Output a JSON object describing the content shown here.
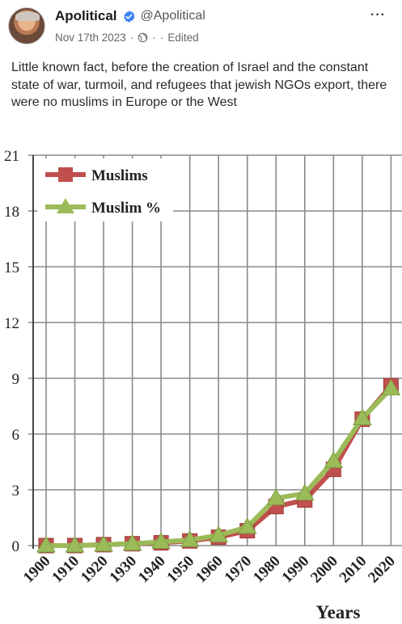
{
  "post": {
    "display_name": "Apolitical",
    "handle": "@Apolitical",
    "date": "Nov 17th 2023",
    "meta_sep1": "·",
    "meta_sep2": "·",
    "meta_sep3": "·",
    "edited": "Edited",
    "more": "···",
    "text": "Little known fact, before the creation of Israel and the constant state of war, turmoil, and refugees that jewish NGOs export, there were no muslims in Europe or the West",
    "icons": {
      "verified": "verified-badge-icon",
      "globe": "globe-icon",
      "more": "more-options-icon"
    },
    "colors": {
      "verified": "#3b82f6"
    }
  },
  "chart_data": {
    "type": "line",
    "x": [
      "1900",
      "1910",
      "1920",
      "1930",
      "1940",
      "1950",
      "1960",
      "1970",
      "1980",
      "1990",
      "2000",
      "2010",
      "2020"
    ],
    "series": [
      {
        "name": "Muslims",
        "color": "#c0504d",
        "marker": "square",
        "values": [
          0,
          0,
          0.05,
          0.1,
          0.15,
          0.25,
          0.45,
          0.8,
          2.1,
          2.45,
          4.1,
          6.8,
          8.6
        ]
      },
      {
        "name": "Muslim %",
        "color": "#9bbb59",
        "marker": "triangle",
        "values": [
          0,
          0,
          0.05,
          0.1,
          0.2,
          0.3,
          0.55,
          1.0,
          2.55,
          2.8,
          4.55,
          6.85,
          8.45
        ]
      }
    ],
    "y_ticks": [
      "0",
      "3",
      "6",
      "9",
      "12",
      "15",
      "18",
      "21"
    ],
    "ylim": [
      0,
      21
    ],
    "xlabel": "Years",
    "ylabel": "",
    "grid": true,
    "legend": "top-left"
  }
}
